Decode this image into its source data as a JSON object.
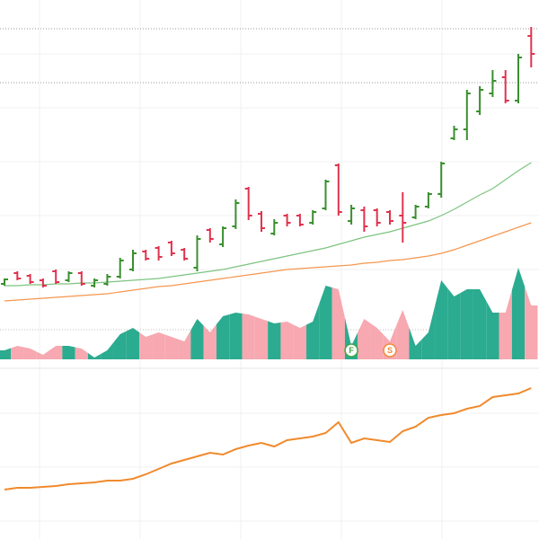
{
  "chart_data": {
    "type": "ohlc",
    "ylim": [
      0,
      600
    ],
    "up_color": "#3a8f2f",
    "down_color": "#e0334e",
    "open": [
      284,
      296,
      293,
      288,
      298,
      288,
      296,
      282,
      284,
      292,
      300,
      320,
      324,
      330,
      322,
      302,
      344,
      328,
      348,
      390,
      362,
      340,
      360,
      360,
      352,
      368,
      416,
      354,
      366,
      366,
      364,
      360,
      358,
      370,
      384,
      446,
      456,
      476,
      496,
      514,
      488,
      560
    ],
    "high": [
      290,
      298,
      295,
      290,
      300,
      298,
      298,
      290,
      295,
      313,
      322,
      322,
      326,
      332,
      324,
      338,
      346,
      348,
      378,
      392,
      365,
      356,
      362,
      362,
      366,
      400,
      418,
      372,
      370,
      368,
      366,
      386,
      372,
      386,
      420,
      460,
      500,
      504,
      522,
      522,
      540,
      570
    ],
    "low": [
      282,
      288,
      284,
      280,
      284,
      286,
      282,
      280,
      282,
      290,
      298,
      310,
      310,
      315,
      310,
      298,
      330,
      325,
      345,
      355,
      342,
      338,
      348,
      348,
      350,
      366,
      360,
      350,
      342,
      348,
      350,
      330,
      356,
      368,
      380,
      444,
      444,
      472,
      492,
      485,
      485,
      525
    ],
    "close": [
      289,
      290,
      286,
      282,
      286,
      296,
      284,
      288,
      292,
      310,
      318,
      312,
      314,
      318,
      312,
      334,
      334,
      346,
      374,
      360,
      346,
      352,
      352,
      350,
      364,
      398,
      364,
      368,
      348,
      352,
      354,
      352,
      370,
      384,
      418,
      456,
      496,
      500,
      510,
      488,
      536,
      540
    ],
    "moving_averages": [
      {
        "color": "#7cc47f",
        "values": [
          282,
          282,
          283,
          283,
          284,
          284,
          285,
          285,
          286,
          287,
          288,
          289,
          290,
          292,
          294,
          296,
          298,
          300,
          303,
          306,
          309,
          312,
          315,
          318,
          321,
          324,
          328,
          332,
          336,
          339,
          342,
          346,
          350,
          354,
          360,
          367,
          375,
          383,
          390,
          400,
          410,
          419
        ]
      },
      {
        "color": "#f5964f",
        "values": [
          265,
          266,
          267,
          268,
          269,
          270,
          271,
          272,
          273,
          275,
          277,
          279,
          281,
          282,
          284,
          286,
          288,
          290,
          292,
          294,
          296,
          298,
          300,
          301,
          302,
          303,
          304,
          305,
          307,
          308,
          310,
          311,
          313,
          315,
          318,
          322,
          327,
          332,
          337,
          342,
          347,
          352
        ]
      }
    ],
    "volume": {
      "ylim": [
        0,
        400
      ],
      "up_color": "#2bab8f",
      "down_color": "#f7a8b0",
      "values": [
        10,
        15,
        12,
        5,
        15,
        15,
        12,
        2,
        10,
        28,
        35,
        25,
        30,
        25,
        20,
        45,
        30,
        48,
        52,
        50,
        45,
        40,
        42,
        35,
        42,
        82,
        78,
        15,
        45,
        35,
        20,
        55,
        15,
        30,
        88,
        70,
        78,
        78,
        52,
        52,
        102,
        60
      ]
    },
    "markers": [
      {
        "label": "F",
        "index": 27,
        "color": "#3aa845"
      },
      {
        "label": "S",
        "index": 30,
        "color": "#f08a3c"
      }
    ],
    "lower_line": {
      "ylim": [
        0,
        600
      ],
      "color": "#f08a2c",
      "values": [
        55,
        57,
        57,
        58,
        59,
        61,
        62,
        63,
        65,
        65,
        67,
        72,
        78,
        84,
        88,
        92,
        96,
        94,
        100,
        104,
        107,
        103,
        110,
        112,
        114,
        118,
        130,
        107,
        112,
        110,
        108,
        120,
        125,
        135,
        138,
        140,
        145,
        148,
        158,
        160,
        162,
        168
      ]
    }
  }
}
